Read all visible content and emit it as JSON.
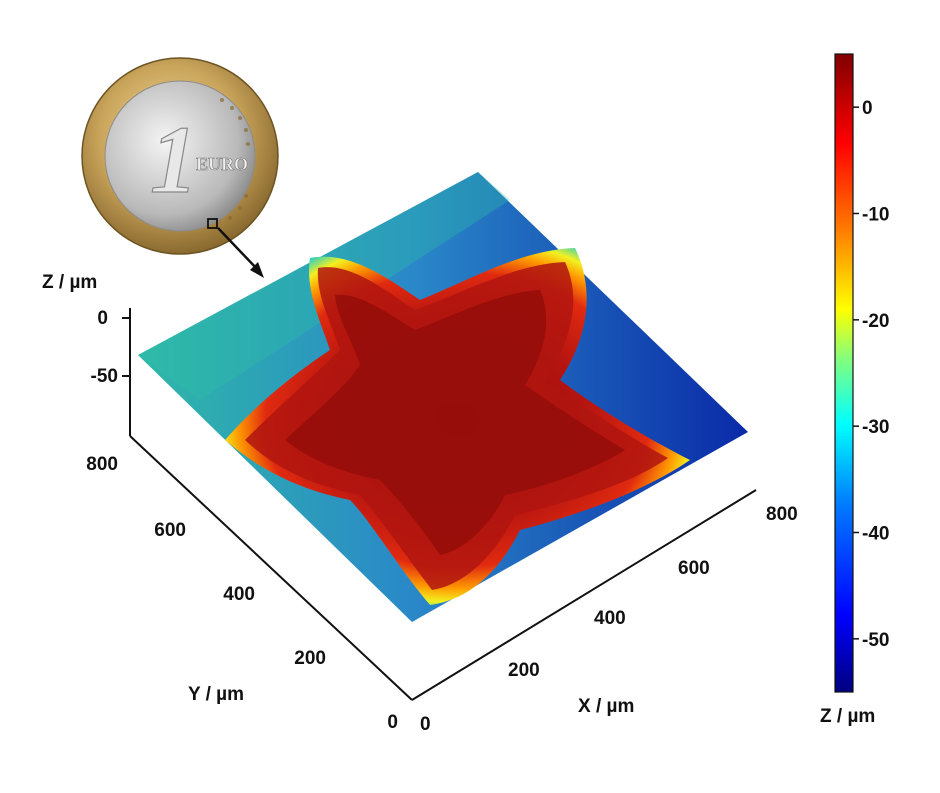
{
  "chart_data": {
    "type": "surface3d",
    "inset": {
      "coin_numeral": "1",
      "coin_text": "EURO",
      "description_shown": "coin with magnified star region (arrow to surface)"
    },
    "axes": {
      "x": {
        "label": "X / µm",
        "ticks": [
          "0",
          "200",
          "400",
          "600",
          "800"
        ],
        "range": [
          0,
          800
        ]
      },
      "y": {
        "label": "Y / µm",
        "ticks": [
          "0",
          "200",
          "400",
          "600",
          "800"
        ],
        "range": [
          0,
          800
        ]
      },
      "z": {
        "label": "Z / µm",
        "ticks": [
          "0",
          "-50"
        ],
        "range": [
          -55,
          5
        ]
      }
    },
    "colorbar": {
      "label": "Z / µm",
      "ticks": [
        "0",
        "-10",
        "-20",
        "-30",
        "-40",
        "-50"
      ],
      "range": [
        -55,
        5
      ],
      "colormap": "jet",
      "colors": [
        "#00007f",
        "#0000ff",
        "#0080ff",
        "#00ffff",
        "#80ff80",
        "#ffff00",
        "#ff8000",
        "#ff0000",
        "#800000"
      ]
    },
    "surface": {
      "feature": "five-pointed star (raised)",
      "star_top_z": 0,
      "background_z_range": [
        -55,
        -30
      ]
    }
  }
}
